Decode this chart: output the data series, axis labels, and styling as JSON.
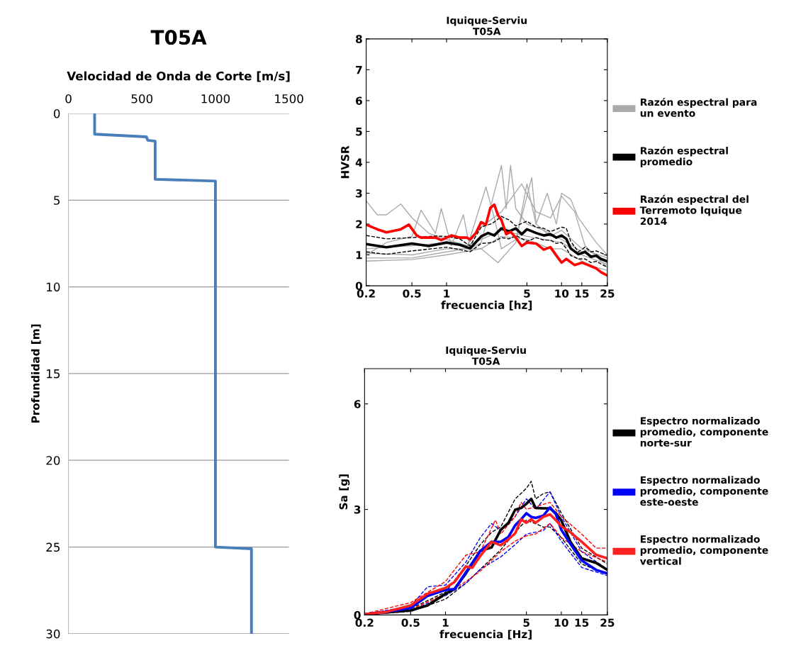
{
  "chart_data": [
    {
      "type": "line",
      "title": "T05A",
      "xlabel": "Velocidad de Onda de Corte [m/s]",
      "ylabel": "Profundidad [m]",
      "xlim": [
        0,
        1500
      ],
      "xticks": [
        0,
        500,
        1000,
        1500
      ],
      "ylim": [
        30,
        0
      ],
      "yticks": [
        0,
        5,
        10,
        15,
        20,
        25,
        30
      ],
      "grid": "y",
      "legend": false,
      "series": [
        {
          "color": "#4a7ebb",
          "line_style": "solid",
          "x": [
            178,
            178,
            530,
            540,
            590,
            590,
            1000,
            1000,
            1245,
            1245
          ],
          "values": [
            0,
            1.2,
            1.35,
            1.55,
            1.6,
            3.8,
            3.9,
            25.0,
            25.1,
            30
          ]
        }
      ]
    },
    {
      "type": "line",
      "title": "Iquique-Serviu",
      "subtitle": "T05A",
      "xlabel": "frecuencia [hz]",
      "ylabel": "HVSR",
      "log": "x",
      "xlim": [
        0.2,
        25
      ],
      "xticks": [
        0.2,
        0.5,
        1,
        5,
        10,
        15,
        25
      ],
      "ylim": [
        0,
        8
      ],
      "yticks": [
        0,
        1,
        2,
        3,
        4,
        5,
        6,
        7,
        8
      ],
      "grid": false,
      "legend": "right",
      "series": [
        {
          "name": "Razón espectral para\nun evento",
          "color": "#aaaaaa",
          "line_style": "solid",
          "x": [
            0.2,
            0.25,
            0.3,
            0.4,
            0.5,
            0.7,
            1.0,
            1.5,
            2,
            3,
            5,
            10,
            15,
            25
          ],
          "values": [
            2.75,
            2.3,
            2.3,
            2.65,
            2.2,
            1.7,
            1.5,
            1.3,
            1.5,
            1.8,
            1.6,
            1.4,
            1.0,
            0.7
          ]
        },
        {
          "color": "#aaaaaa",
          "line_style": "solid",
          "x": [
            0.2,
            0.3,
            0.5,
            0.6,
            0.8,
            0.9,
            1.1,
            1.4,
            1.6,
            2,
            3,
            3.3,
            3.6,
            4,
            5,
            7,
            10,
            15,
            25
          ],
          "values": [
            1.0,
            1.4,
            1.6,
            2.45,
            1.7,
            2.5,
            1.3,
            2.3,
            1.2,
            1.4,
            3.9,
            2.5,
            3.9,
            2.5,
            2.0,
            1.8,
            1.5,
            1.1,
            0.8
          ]
        },
        {
          "color": "#aaaaaa",
          "line_style": "solid",
          "x": [
            0.2,
            0.5,
            1,
            1.5,
            2.2,
            2.6,
            3.0,
            4,
            5.5,
            6,
            8,
            10,
            15,
            25
          ],
          "values": [
            0.9,
            0.9,
            1.1,
            1.2,
            3.2,
            2.2,
            1.2,
            1.5,
            3.5,
            2.0,
            1.6,
            1.8,
            1.2,
            0.9
          ]
        },
        {
          "color": "#aaaaaa",
          "line_style": "solid",
          "x": [
            0.2,
            0.5,
            1,
            2,
            2.8,
            4,
            5,
            6,
            7.5,
            9,
            10,
            12,
            14,
            20,
            25
          ],
          "values": [
            0.8,
            0.85,
            1.0,
            1.2,
            0.75,
            1.4,
            3.3,
            2.0,
            3.0,
            2.0,
            3.0,
            2.8,
            2.2,
            1.4,
            1.0
          ]
        },
        {
          "color": "#aaaaaa",
          "line_style": "solid",
          "x": [
            0.2,
            0.5,
            1,
            1.5,
            2,
            3,
            4.5,
            6,
            8,
            10,
            13,
            16,
            25
          ],
          "values": [
            1.2,
            1.3,
            1.4,
            1.3,
            1.9,
            2.4,
            3.3,
            2.4,
            2.2,
            2.9,
            2.4,
            1.3,
            0.6
          ]
        },
        {
          "color": "#aaaaaa",
          "line_style": "solid",
          "x": [
            0.2,
            0.5,
            1,
            2,
            3,
            5,
            8,
            10,
            15,
            20,
            25
          ],
          "values": [
            1.05,
            1.0,
            1.2,
            1.2,
            1.6,
            1.5,
            1.2,
            1.2,
            0.8,
            0.6,
            0.5
          ]
        },
        {
          "color": "#000000",
          "line_style": "dashed",
          "x": [
            0.2,
            0.3,
            0.5,
            0.8,
            1.0,
            1.3,
            1.6,
            2,
            2.5,
            3,
            3.5,
            4,
            5,
            6,
            7,
            8,
            9,
            10,
            11,
            12,
            14,
            16,
            18,
            20,
            25
          ],
          "values": [
            1.63,
            1.52,
            1.56,
            1.61,
            1.6,
            1.52,
            1.29,
            1.9,
            2.02,
            2.25,
            2.13,
            1.94,
            2.09,
            1.9,
            1.86,
            1.75,
            1.83,
            1.9,
            1.86,
            1.44,
            1.1,
            1.25,
            1.1,
            1.13,
            0.98
          ]
        },
        {
          "color": "#000000",
          "line_style": "dashed",
          "x": [
            0.2,
            0.3,
            0.5,
            0.8,
            1.0,
            1.3,
            1.6,
            2,
            2.5,
            3,
            3.5,
            4,
            5,
            6,
            7,
            8,
            9,
            10,
            11,
            12,
            14,
            16,
            18,
            20,
            25
          ],
          "values": [
            1.1,
            1.02,
            1.13,
            1.21,
            1.25,
            1.17,
            1.1,
            1.37,
            1.4,
            1.56,
            1.52,
            1.63,
            1.44,
            1.56,
            1.48,
            1.48,
            1.37,
            1.4,
            1.21,
            0.98,
            0.87,
            0.87,
            0.75,
            0.79,
            0.6
          ]
        },
        {
          "name": "Razón espectral\npromedio",
          "color": "#000000",
          "line_style": "solid",
          "x": [
            0.2,
            0.3,
            0.5,
            0.7,
            1.0,
            1.3,
            1.6,
            2,
            2.3,
            2.6,
            3,
            3.5,
            4,
            4.5,
            5,
            6,
            7,
            8,
            9,
            10,
            11,
            12,
            14,
            16,
            18,
            20,
            22,
            25
          ],
          "values": [
            1.35,
            1.25,
            1.37,
            1.29,
            1.4,
            1.33,
            1.21,
            1.6,
            1.71,
            1.63,
            1.86,
            1.76,
            1.86,
            1.67,
            1.83,
            1.71,
            1.63,
            1.67,
            1.56,
            1.63,
            1.52,
            1.21,
            1.02,
            1.1,
            0.94,
            0.98,
            0.87,
            0.79
          ]
        },
        {
          "name": "Razón espectral del\nTerremoto Iquique\n2014",
          "color": "#ff0000",
          "line_style": "solid",
          "x": [
            0.2,
            0.25,
            0.3,
            0.4,
            0.47,
            0.55,
            0.6,
            0.8,
            0.9,
            1.1,
            1.3,
            1.5,
            1.6,
            1.8,
            2.0,
            2.2,
            2.4,
            2.6,
            2.8,
            3.0,
            3.3,
            3.6,
            4,
            4.5,
            5,
            6,
            7,
            8,
            9,
            10,
            11,
            13,
            15,
            17,
            20,
            22,
            25
          ],
          "values": [
            1.98,
            1.83,
            1.73,
            1.83,
            1.98,
            1.63,
            1.56,
            1.56,
            1.48,
            1.63,
            1.56,
            1.56,
            1.5,
            1.71,
            2.06,
            1.98,
            2.52,
            2.63,
            2.29,
            2.13,
            1.67,
            1.75,
            1.56,
            1.29,
            1.4,
            1.37,
            1.17,
            1.25,
            0.98,
            0.75,
            0.87,
            0.67,
            0.75,
            0.67,
            0.56,
            0.44,
            0.33
          ]
        }
      ]
    },
    {
      "type": "line",
      "title": "Iquique-Serviu",
      "subtitle": "T05A",
      "xlabel": "frecuencia [Hz]",
      "ylabel": "Sa [g]",
      "log": "x",
      "xlim": [
        0.2,
        25
      ],
      "xticks": [
        0.2,
        0.5,
        1,
        5,
        10,
        15,
        25
      ],
      "ylim": [
        0,
        7
      ],
      "yticks": [
        0,
        3,
        6
      ],
      "grid": false,
      "legend": "right",
      "series": [
        {
          "color": "#000000",
          "line_style": "dashed",
          "x": [
            0.2,
            0.5,
            1,
            1.5,
            2,
            2.5,
            3,
            4,
            5,
            5.5,
            6,
            7,
            8,
            10,
            15,
            25
          ],
          "values": [
            0.02,
            0.18,
            0.65,
            1.4,
            2.0,
            2.35,
            2.5,
            3.3,
            3.6,
            3.8,
            3.3,
            3.45,
            3.5,
            2.9,
            1.9,
            1.45
          ]
        },
        {
          "color": "#000000",
          "line_style": "dashed",
          "x": [
            0.2,
            0.5,
            1,
            1.5,
            2,
            3,
            4,
            5,
            7,
            8,
            10,
            15,
            25
          ],
          "values": [
            0.01,
            0.1,
            0.45,
            0.9,
            1.3,
            1.85,
            2.35,
            2.7,
            2.5,
            2.5,
            2.2,
            1.45,
            1.15
          ]
        },
        {
          "color": "#0000ff",
          "line_style": "dashed",
          "x": [
            0.2,
            0.5,
            0.7,
            1,
            1.5,
            2,
            2.5,
            3,
            4,
            5,
            6,
            8,
            10,
            15,
            25
          ],
          "values": [
            0.02,
            0.25,
            0.8,
            0.85,
            1.5,
            2.2,
            2.6,
            2.4,
            2.8,
            3.3,
            3.0,
            3.5,
            2.8,
            1.8,
            1.3
          ]
        },
        {
          "color": "#0000ff",
          "line_style": "dashed",
          "x": [
            0.2,
            0.5,
            1,
            1.5,
            2,
            3,
            4,
            5,
            7,
            8,
            10,
            15,
            25
          ],
          "values": [
            0.01,
            0.12,
            0.55,
            0.9,
            1.3,
            1.65,
            2.0,
            2.3,
            2.4,
            2.6,
            2.1,
            1.35,
            1.12
          ]
        },
        {
          "color": "#ff0000",
          "line_style": "dashed",
          "x": [
            0.2,
            0.5,
            1,
            1.5,
            2,
            2.7,
            3,
            4,
            4.5,
            5,
            8,
            10,
            15,
            20,
            25
          ],
          "values": [
            0.03,
            0.35,
            0.95,
            1.7,
            1.8,
            2.7,
            2.3,
            2.8,
            3.2,
            3.0,
            3.2,
            2.8,
            2.3,
            1.9,
            1.9
          ]
        },
        {
          "color": "#ff0000",
          "line_style": "dashed",
          "x": [
            0.2,
            0.5,
            1,
            1.5,
            2,
            3,
            4,
            5,
            6,
            8,
            10,
            15,
            25
          ],
          "values": [
            0.01,
            0.15,
            0.6,
            0.95,
            1.25,
            1.8,
            2.1,
            2.25,
            2.3,
            2.6,
            2.2,
            1.8,
            1.5
          ]
        },
        {
          "name": "Espectro normalizado\npromedio, componente\nnorte-sur",
          "color": "#000000",
          "line_style": "solid",
          "x": [
            0.2,
            0.3,
            0.5,
            0.7,
            1.0,
            1.2,
            1.5,
            2,
            2.5,
            3,
            3.5,
            4,
            4.5,
            5,
            5.5,
            6,
            7,
            8,
            9,
            10,
            12,
            15,
            20,
            25
          ],
          "values": [
            0.02,
            0.07,
            0.13,
            0.27,
            0.6,
            0.74,
            1.18,
            1.82,
            1.92,
            2.42,
            2.62,
            2.99,
            3.04,
            3.16,
            3.3,
            3.04,
            3.03,
            3.03,
            2.89,
            2.69,
            2.08,
            1.61,
            1.48,
            1.28
          ]
        },
        {
          "name": "Espectro normalizado\npromedio, componente\neste-oeste",
          "color": "#0000ff",
          "line_style": "solid",
          "x": [
            0.2,
            0.3,
            0.5,
            0.7,
            1.0,
            1.2,
            1.5,
            2,
            2.5,
            3,
            3.5,
            4,
            4.5,
            5,
            5.5,
            6,
            7,
            8,
            9,
            10,
            12,
            15,
            20,
            25
          ],
          "values": [
            0.02,
            0.08,
            0.2,
            0.54,
            0.71,
            0.74,
            1.21,
            1.82,
            2.08,
            2.08,
            2.22,
            2.55,
            2.72,
            2.89,
            2.79,
            2.76,
            2.82,
            3.06,
            2.86,
            2.42,
            2.02,
            1.55,
            1.28,
            1.18
          ]
        },
        {
          "name": "Espectro normalizado\npromedio, componente\nvertical",
          "color": "#ff2020",
          "line_style": "solid",
          "x": [
            0.2,
            0.3,
            0.5,
            0.7,
            1.0,
            1.2,
            1.5,
            1.7,
            2,
            2.5,
            3,
            3.5,
            4,
            4.5,
            5,
            5.5,
            6,
            7,
            8,
            9,
            10,
            12,
            15,
            20,
            25
          ],
          "values": [
            0.02,
            0.08,
            0.27,
            0.6,
            0.77,
            0.94,
            1.38,
            1.34,
            1.68,
            2.08,
            1.98,
            2.15,
            2.32,
            2.72,
            2.62,
            2.72,
            2.62,
            2.79,
            2.86,
            2.69,
            2.52,
            2.35,
            2.08,
            1.71,
            1.61
          ]
        }
      ]
    }
  ]
}
